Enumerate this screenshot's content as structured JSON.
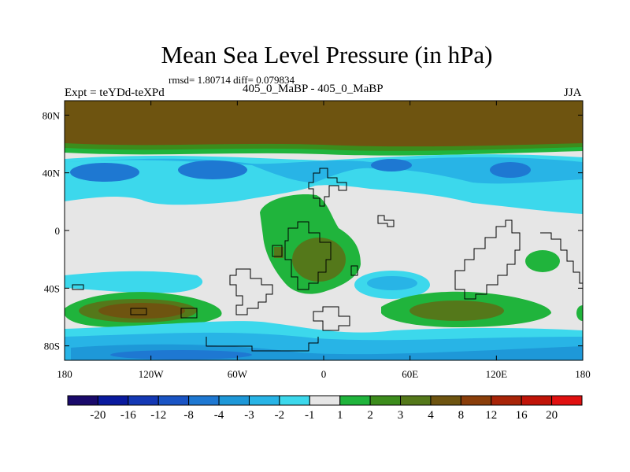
{
  "title": "Mean Sea Level Pressure (in hPa)",
  "stats": "rmsd= 1.80714 diff= 0.079834",
  "left_label": "Expt = teYDd-teXPd",
  "subtitle": "405_0_MaBP - 405_0_MaBP",
  "season": "JJA",
  "chart_data": {
    "type": "heatmap",
    "title": "Mean Sea Level Pressure (in hPa)",
    "xlabel": "",
    "ylabel": "",
    "xlim": [
      -180,
      180
    ],
    "ylim": [
      -90,
      90
    ],
    "x_ticks": [
      {
        "value": -180,
        "label": "180"
      },
      {
        "value": -120,
        "label": "120W"
      },
      {
        "value": -60,
        "label": "60W"
      },
      {
        "value": 0,
        "label": "0"
      },
      {
        "value": 60,
        "label": "60E"
      },
      {
        "value": 120,
        "label": "120E"
      },
      {
        "value": 180,
        "label": "180"
      }
    ],
    "y_ticks": [
      {
        "value": 80,
        "label": "80N"
      },
      {
        "value": 40,
        "label": "40N"
      },
      {
        "value": 0,
        "label": "0"
      },
      {
        "value": -40,
        "label": "40S"
      },
      {
        "value": -80,
        "label": "80S"
      }
    ],
    "colorbar": {
      "labels": [
        "-20",
        "-16",
        "-12",
        "-8",
        "-4",
        "-3",
        "-2",
        "-1",
        "1",
        "2",
        "3",
        "4",
        "8",
        "12",
        "16",
        "20"
      ],
      "colors": [
        "#1a0a6b",
        "#0a1a9e",
        "#1438b4",
        "#1a54c4",
        "#1e78d2",
        "#1e98d8",
        "#28b4e6",
        "#3cd8ec",
        "#e6e6e6",
        "#20b43c",
        "#3c8c1c",
        "#54781a",
        "#6e5410",
        "#8a3e0a",
        "#a82408",
        "#c01408",
        "#e01010"
      ]
    },
    "regions": [
      {
        "name": "arctic high",
        "value": 8,
        "lon": [
          -180,
          180
        ],
        "lat": [
          60,
          90
        ]
      },
      {
        "name": "northern low band",
        "value": -2,
        "lon": [
          -180,
          180
        ],
        "lat": [
          20,
          45
        ]
      },
      {
        "name": "north pacific low",
        "value": -4,
        "lon": [
          -165,
          -125
        ],
        "lat": [
          30,
          42
        ]
      },
      {
        "name": "north atlantic low",
        "value": -4,
        "lon": [
          -90,
          -40
        ],
        "lat": [
          30,
          42
        ]
      },
      {
        "name": "eurasia low",
        "value": -4,
        "lon": [
          35,
          75
        ],
        "lat": [
          34,
          44
        ]
      },
      {
        "name": "east asia low",
        "value": -4,
        "lon": [
          115,
          150
        ],
        "lat": [
          32,
          42
        ]
      },
      {
        "name": "equatorial high",
        "value": 2,
        "lon": [
          -35,
          10
        ],
        "lat": [
          -35,
          10
        ]
      },
      {
        "name": "equatorial high core",
        "value": 4,
        "lon": [
          -18,
          5
        ],
        "lat": [
          -25,
          0
        ]
      },
      {
        "name": "south atlantic low",
        "value": -2,
        "lon": [
          15,
          65
        ],
        "lat": [
          -45,
          -20
        ]
      },
      {
        "name": "southern high west",
        "value": 4,
        "lon": [
          -180,
          -95
        ],
        "lat": [
          -70,
          -45
        ]
      },
      {
        "name": "southern high east",
        "value": 3,
        "lon": [
          40,
          145
        ],
        "lat": [
          -70,
          -45
        ]
      },
      {
        "name": "southern low band",
        "value": -3,
        "lon": [
          -180,
          180
        ],
        "lat": [
          -90,
          -70
        ]
      },
      {
        "name": "east pacific high",
        "value": 2,
        "lon": [
          150,
          175
        ],
        "lat": [
          -30,
          -15
        ]
      }
    ]
  }
}
